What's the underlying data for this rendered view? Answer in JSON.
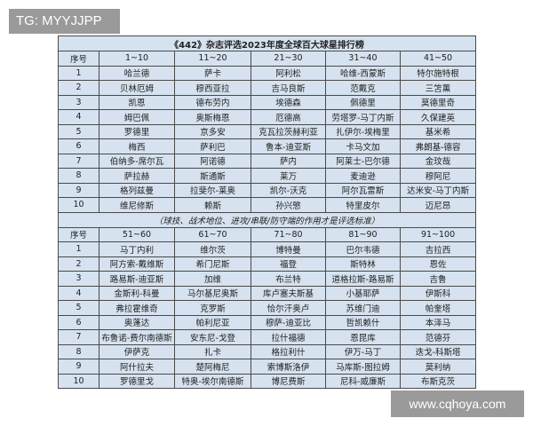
{
  "watermarks": {
    "top": "TG: MYYJJPP",
    "bottom": "www.cqhoya.com"
  },
  "title": "《442》杂志评选2023年度全球百大球星排行榜",
  "note": "（球技、战术地位、进攻/串联/防守端的作用才是评选标准）",
  "colors": {
    "table_bg": "#d6e2ef",
    "border": "#4a4a4a"
  },
  "sections": [
    {
      "headers": [
        "序号",
        "1~10",
        "11~20",
        "21~30",
        "31~40",
        "41~50"
      ],
      "rows": [
        [
          "1",
          "哈兰德",
          "萨卡",
          "阿利松",
          "哈维-西蒙斯",
          "特尔施特根"
        ],
        [
          "2",
          "贝林厄姆",
          "穆西亚拉",
          "吉马良斯",
          "范戴克",
          "三笘薰"
        ],
        [
          "3",
          "凯恩",
          "德布劳内",
          "埃德森",
          "佩德里",
          "莫德里奇"
        ],
        [
          "4",
          "姆巴佩",
          "奥斯梅恩",
          "厄德高",
          "劳塔罗-马丁内斯",
          "久保建英"
        ],
        [
          "5",
          "罗德里",
          "京多安",
          "克瓦拉茨赫利亚",
          "扎伊尔-埃梅里",
          "基米希"
        ],
        [
          "6",
          "梅西",
          "萨利巴",
          "鲁本-迪亚斯",
          "卡马文加",
          "弗朗基-德容"
        ],
        [
          "7",
          "伯纳多-席尔瓦",
          "阿诺德",
          "萨内",
          "阿莱士-巴尔德",
          "金玟哉"
        ],
        [
          "8",
          "萨拉赫",
          "斯通斯",
          "莱万",
          "麦迪逊",
          "穆阿尼"
        ],
        [
          "9",
          "格列兹曼",
          "拉斐尔-莱奥",
          "凯尔-沃克",
          "阿尔瓦雷斯",
          "达米安-马丁内斯"
        ],
        [
          "10",
          "维尼修斯",
          "赖斯",
          "孙兴慜",
          "特里皮尔",
          "迈尼昂"
        ]
      ]
    },
    {
      "headers": [
        "序号",
        "51~60",
        "61~70",
        "71~80",
        "81~90",
        "91~100"
      ],
      "rows": [
        [
          "1",
          "马丁内利",
          "维尔茨",
          "博特曼",
          "巴尔韦德",
          "吉拉西"
        ],
        [
          "2",
          "阿方索-戴维斯",
          "希门尼斯",
          "福登",
          "斯特林",
          "恩佐"
        ],
        [
          "3",
          "路易斯-迪亚斯",
          "加维",
          "布兰特",
          "道格拉斯-路易斯",
          "吉鲁"
        ],
        [
          "4",
          "金斯利-科曼",
          "马尔基尼奥斯",
          "库卢塞夫斯基",
          "小基耶萨",
          "伊斯科"
        ],
        [
          "5",
          "弗拉霍维奇",
          "克罗斯",
          "恰尔汗奥卢",
          "苏维门迪",
          "帕奎塔"
        ],
        [
          "6",
          "奥蓬达",
          "帕利尼亚",
          "穆萨-迪亚比",
          "哲凯赖什",
          "本泽马"
        ],
        [
          "7",
          "布鲁诺-费尔南德斯",
          "安东尼-戈登",
          "拉什福德",
          "恩昆库",
          "范德芬"
        ],
        [
          "8",
          "伊萨克",
          "扎卡",
          "格拉利什",
          "伊万-马丁",
          "迭戈-科斯塔"
        ],
        [
          "9",
          "阿什拉夫",
          "楚阿梅尼",
          "索博斯洛伊",
          "马库斯-图拉姆",
          "莫利纳"
        ],
        [
          "10",
          "罗德里戈",
          "特奥-埃尔南德斯",
          "博尼费斯",
          "尼科-威廉斯",
          "布斯克茨"
        ]
      ]
    }
  ]
}
